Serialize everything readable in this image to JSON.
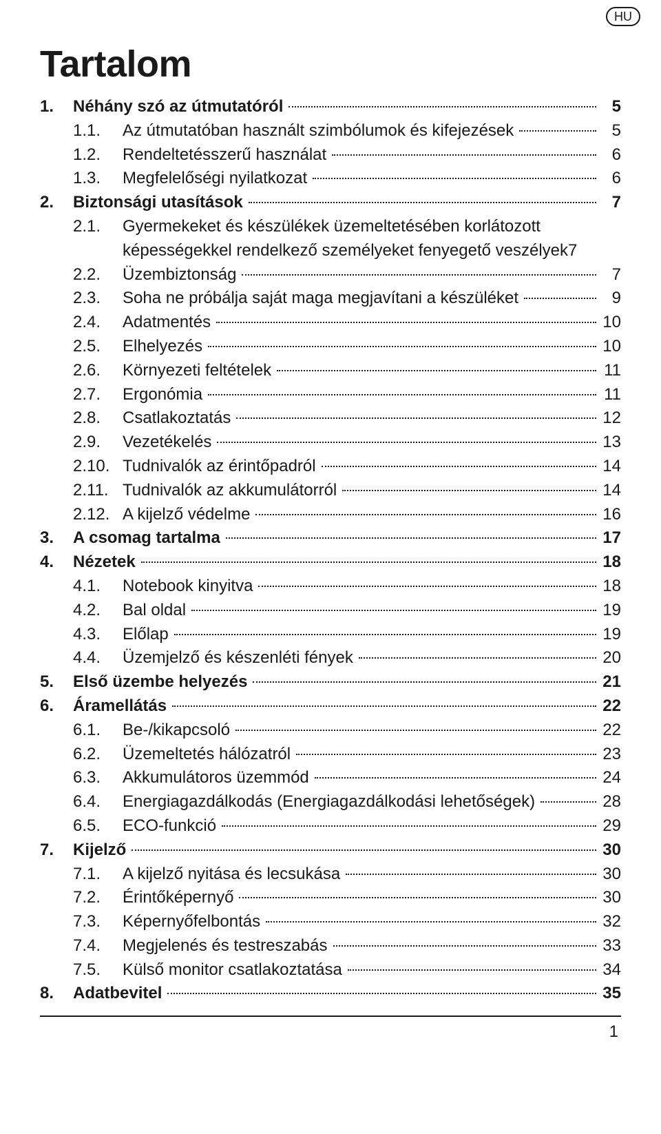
{
  "lang_badge": "HU",
  "title": "Tartalom",
  "page_number": "1",
  "colors": {
    "text": "#1a1a1a",
    "background": "#ffffff",
    "leader": "#1a1a1a",
    "rule": "#1a1a1a"
  },
  "typography": {
    "title_fontsize_pt": 40,
    "body_fontsize_pt": 18,
    "font_family": "Myriad Pro / sans-serif"
  },
  "toc": {
    "type": "table-of-contents",
    "entries": [
      {
        "level": 0,
        "bold": true,
        "num": "1.",
        "label": "Néhány szó az útmutatóról",
        "page": "5"
      },
      {
        "level": 1,
        "bold": false,
        "num": "1.1.",
        "label": "Az útmutatóban használt szimbólumok és kifejezések",
        "page": "5"
      },
      {
        "level": 1,
        "bold": false,
        "num": "1.2.",
        "label": "Rendeltetésszerű használat",
        "page": "6"
      },
      {
        "level": 1,
        "bold": false,
        "num": "1.3.",
        "label": "Megfelelőségi nyilatkozat",
        "page": "6"
      },
      {
        "level": 0,
        "bold": true,
        "num": "2.",
        "label": "Biztonsági utasítások",
        "page": "7"
      },
      {
        "level": 1,
        "bold": false,
        "num": "2.1.",
        "label": "Gyermekeket és készülékek üzemeltetésében korlátozott",
        "page": ""
      },
      {
        "level": 2,
        "bold": false,
        "num": "",
        "label": "képességekkel rendelkező személyeket fenyegető veszélyek7",
        "page": ""
      },
      {
        "level": 1,
        "bold": false,
        "num": "2.2.",
        "label": "Üzembiztonság",
        "page": "7"
      },
      {
        "level": 1,
        "bold": false,
        "num": "2.3.",
        "label": "Soha ne próbálja saját maga megjavítani a készüléket",
        "page": "9"
      },
      {
        "level": 1,
        "bold": false,
        "num": "2.4.",
        "label": "Adatmentés",
        "page": "10"
      },
      {
        "level": 1,
        "bold": false,
        "num": "2.5.",
        "label": "Elhelyezés",
        "page": "10"
      },
      {
        "level": 1,
        "bold": false,
        "num": "2.6.",
        "label": "Környezeti feltételek",
        "page": "11"
      },
      {
        "level": 1,
        "bold": false,
        "num": "2.7.",
        "label": "Ergonómia",
        "page": "11"
      },
      {
        "level": 1,
        "bold": false,
        "num": "2.8.",
        "label": "Csatlakoztatás",
        "page": "12"
      },
      {
        "level": 1,
        "bold": false,
        "num": "2.9.",
        "label": "Vezetékelés",
        "page": "13"
      },
      {
        "level": 1,
        "bold": false,
        "num": "2.10.",
        "label": "Tudnivalók az érintőpadról",
        "page": "14"
      },
      {
        "level": 1,
        "bold": false,
        "num": "2.11.",
        "label": "Tudnivalók az akkumulátorról",
        "page": "14"
      },
      {
        "level": 1,
        "bold": false,
        "num": "2.12.",
        "label": "A kijelző védelme",
        "page": "16"
      },
      {
        "level": 0,
        "bold": true,
        "num": "3.",
        "label": "A csomag tartalma",
        "page": "17"
      },
      {
        "level": 0,
        "bold": true,
        "num": "4.",
        "label": "Nézetek",
        "page": "18"
      },
      {
        "level": 1,
        "bold": false,
        "num": "4.1.",
        "label": "Notebook kinyitva",
        "page": "18"
      },
      {
        "level": 1,
        "bold": false,
        "num": "4.2.",
        "label": "Bal oldal",
        "page": "19"
      },
      {
        "level": 1,
        "bold": false,
        "num": "4.3.",
        "label": "Előlap",
        "page": "19"
      },
      {
        "level": 1,
        "bold": false,
        "num": "4.4.",
        "label": "Üzemjelző és készenléti fények",
        "page": "20"
      },
      {
        "level": 0,
        "bold": true,
        "num": "5.",
        "label": "Első üzembe helyezés",
        "page": "21"
      },
      {
        "level": 0,
        "bold": true,
        "num": "6.",
        "label": "Áramellátás",
        "page": "22"
      },
      {
        "level": 1,
        "bold": false,
        "num": "6.1.",
        "label": "Be-/kikapcsoló",
        "page": "22"
      },
      {
        "level": 1,
        "bold": false,
        "num": "6.2.",
        "label": "Üzemeltetés hálózatról",
        "page": "23"
      },
      {
        "level": 1,
        "bold": false,
        "num": "6.3.",
        "label": "Akkumulátoros üzemmód",
        "page": "24"
      },
      {
        "level": 1,
        "bold": false,
        "num": "6.4.",
        "label": "Energiagazdálkodás (Energiagazdálkodási lehetőségek)",
        "page": "28"
      },
      {
        "level": 1,
        "bold": false,
        "num": "6.5.",
        "label": "ECO-funkció",
        "page": "29"
      },
      {
        "level": 0,
        "bold": true,
        "num": "7.",
        "label": "Kijelző",
        "page": "30"
      },
      {
        "level": 1,
        "bold": false,
        "num": "7.1.",
        "label": "A kijelző nyitása és lecsukása",
        "page": "30"
      },
      {
        "level": 1,
        "bold": false,
        "num": "7.2.",
        "label": "Érintőképernyő",
        "page": "30"
      },
      {
        "level": 1,
        "bold": false,
        "num": "7.3.",
        "label": "Képernyőfelbontás",
        "page": "32"
      },
      {
        "level": 1,
        "bold": false,
        "num": "7.4.",
        "label": "Megjelenés és testreszabás",
        "page": "33"
      },
      {
        "level": 1,
        "bold": false,
        "num": "7.5.",
        "label": "Külső monitor csatlakoztatása",
        "page": "34"
      },
      {
        "level": 0,
        "bold": true,
        "num": "8.",
        "label": "Adatbevitel",
        "page": "35"
      }
    ]
  }
}
